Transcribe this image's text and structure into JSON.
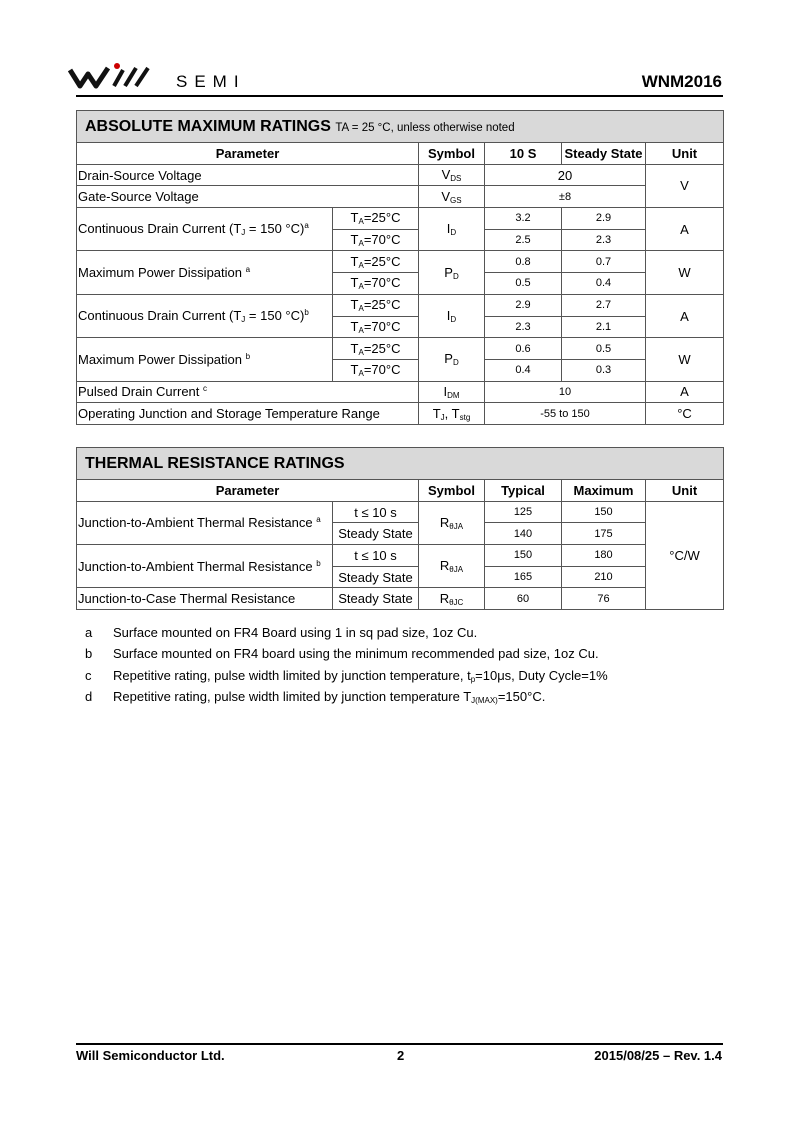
{
  "header": {
    "brand": "SEMI",
    "part_number": "WNM2016"
  },
  "ratings": {
    "title": "ABSOLUTE MAXIMUM RATINGS",
    "condition": "TA = 25 °C, unless otherwise noted",
    "columns": [
      "Parameter",
      "Symbol",
      "10 S",
      "Steady State",
      "Unit"
    ],
    "rows": [
      {
        "parameter": "Drain-Source Voltage",
        "symbol": [
          "V",
          "DS"
        ],
        "value": 20,
        "unit": "V"
      },
      {
        "parameter": "Gate-Source Voltage",
        "symbol": [
          "V",
          "GS"
        ],
        "value": "±8"
      },
      {
        "parameter": [
          "Continuous Drain Current (T",
          "J",
          " = 150 °C)",
          "a"
        ],
        "conditions": [
          [
            "T",
            "A",
            "=25°C"
          ],
          [
            "T",
            "A",
            "=70°C"
          ]
        ],
        "symbol": [
          "I",
          "D"
        ],
        "ten_s": [
          3.2,
          2.5
        ],
        "steady_state": [
          2.9,
          2.3
        ],
        "unit": "A"
      },
      {
        "parameter": [
          "Maximum Power Dissipation ",
          "a"
        ],
        "conditions": [
          [
            "T",
            "A",
            "=25°C"
          ],
          [
            "T",
            "A",
            "=70°C"
          ]
        ],
        "symbol": [
          "P",
          "D"
        ],
        "ten_s": [
          0.8,
          0.5
        ],
        "steady_state": [
          0.7,
          0.4
        ],
        "unit": "W"
      },
      {
        "parameter": [
          "Continuous Drain Current (T",
          "J",
          " = 150 °C)",
          "b"
        ],
        "conditions": [
          [
            "T",
            "A",
            "=25°C"
          ],
          [
            "T",
            "A",
            "=70°C"
          ]
        ],
        "symbol": [
          "I",
          "D"
        ],
        "ten_s": [
          2.9,
          2.3
        ],
        "steady_state": [
          2.7,
          2.1
        ],
        "unit": "A"
      },
      {
        "parameter": [
          "Maximum Power Dissipation ",
          "b"
        ],
        "conditions": [
          [
            "T",
            "A",
            "=25°C"
          ],
          [
            "T",
            "A",
            "=70°C"
          ]
        ],
        "symbol": [
          "P",
          "D"
        ],
        "ten_s": [
          0.6,
          0.4
        ],
        "steady_state": [
          0.5,
          0.3
        ],
        "unit": "W"
      },
      {
        "parameter": [
          "Pulsed Drain Current ",
          "c"
        ],
        "symbol": [
          "I",
          "DM"
        ],
        "value": 10,
        "unit": "A"
      },
      {
        "parameter": "Operating Junction and Storage Temperature Range",
        "symbol": [
          "T",
          "J",
          ", T",
          "stg"
        ],
        "value": "-55 to 150",
        "unit": "°C"
      }
    ]
  },
  "thermal": {
    "title": "THERMAL RESISTANCE RATINGS",
    "columns": [
      "Parameter",
      "Symbol",
      "Typical",
      "Maximum",
      "Unit"
    ],
    "rows": [
      {
        "parameter": [
          "Junction-to-Ambient Thermal Resistance ",
          "a"
        ],
        "conditions": [
          "t ≤ 10 s",
          "Steady State"
        ],
        "symbol": [
          "R",
          "θJA"
        ],
        "typical": [
          125,
          140
        ],
        "maximum": [
          150,
          175
        ]
      },
      {
        "parameter": [
          "Junction-to-Ambient Thermal Resistance ",
          "b"
        ],
        "conditions": [
          "t ≤ 10 s",
          "Steady State"
        ],
        "symbol": [
          "R",
          "θJA"
        ],
        "typical": [
          150,
          165
        ],
        "maximum": [
          180,
          210
        ]
      },
      {
        "parameter": "Junction-to-Case Thermal Resistance",
        "conditions": [
          "Steady State"
        ],
        "symbol": [
          "R",
          "θJC"
        ],
        "typical": [
          60
        ],
        "maximum": [
          76
        ]
      }
    ],
    "unit": "°C/W"
  },
  "footnotes": [
    {
      "label": "a",
      "text": "Surface mounted on FR4 Board using 1 in sq pad size, 1oz Cu."
    },
    {
      "label": "b",
      "text": "Surface mounted on FR4 board using the minimum recommended pad size, 1oz Cu."
    },
    {
      "label": "c",
      "text": [
        "Repetitive rating, pulse width limited by junction temperature, t",
        "p",
        "=10μs, Duty Cycle=1%"
      ]
    },
    {
      "label": "d",
      "text": [
        "Repetitive rating, pulse width limited by junction temperature T",
        "J(MAX)",
        "=150°C."
      ]
    }
  ],
  "footer": {
    "company": "Will Semiconductor Ltd.",
    "page": 2,
    "revision": "2015/08/25 – Rev. 1.4"
  }
}
